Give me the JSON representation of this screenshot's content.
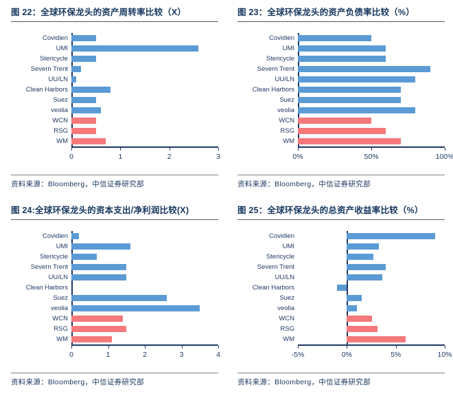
{
  "palette": {
    "bar_blue": "#5B9BD5",
    "bar_red": "#F5787B",
    "axis_navy": "#1F3864",
    "title_navy": "#17375E"
  },
  "source_line": "资料来源：Bloomberg，中信证券研究部",
  "chart_data": [
    {
      "type": "bar",
      "orientation": "horizontal",
      "figure_label": "图 22",
      "title": "图 22：全球环保龙头的资产周转率比较（X）",
      "unit": "X",
      "categories": [
        "Covidien",
        "UMI",
        "Stericycle",
        "Severn Trent",
        "UU/LN",
        "Clean Harbors",
        "Suez",
        "veolia",
        "WCN",
        "RSG",
        "WM"
      ],
      "values": [
        0.5,
        2.6,
        0.5,
        0.2,
        0.1,
        0.8,
        0.5,
        0.6,
        0.5,
        0.5,
        0.7
      ],
      "colors": [
        "blue",
        "blue",
        "blue",
        "blue",
        "blue",
        "blue",
        "blue",
        "blue",
        "red",
        "red",
        "red"
      ],
      "xlim": [
        0,
        3
      ],
      "xticks": [
        0,
        1,
        2,
        3
      ],
      "xtick_labels": [
        "0",
        "1",
        "2",
        "3"
      ],
      "grid": false,
      "legend": false
    },
    {
      "type": "bar",
      "orientation": "horizontal",
      "figure_label": "图 23",
      "title": "图 23：全球环保龙头的资产负债率比较（%）",
      "unit": "%",
      "categories": [
        "Covidien",
        "UMI",
        "Stericycle",
        "Severn Trent",
        "UU/LN",
        "Clean Harbors",
        "Suez",
        "veolia",
        "WCN",
        "RSG",
        "WM"
      ],
      "values": [
        50,
        60,
        60,
        90,
        80,
        70,
        70,
        80,
        50,
        60,
        70
      ],
      "colors": [
        "blue",
        "blue",
        "blue",
        "blue",
        "blue",
        "blue",
        "blue",
        "blue",
        "red",
        "red",
        "red"
      ],
      "xlim": [
        0,
        100
      ],
      "xticks": [
        0,
        50,
        100
      ],
      "xtick_labels": [
        "0%",
        "50%",
        "100%"
      ],
      "grid": false,
      "legend": false
    },
    {
      "type": "bar",
      "orientation": "horizontal",
      "figure_label": "图 24",
      "title": "图 24:全球环保龙头的资本支出/净利润比较(X)",
      "unit": "X",
      "categories": [
        "Covidien",
        "UMI",
        "Stericycle",
        "Severn Trent",
        "UU/LN",
        "Clean Harbors",
        "Suez",
        "veolia",
        "WCN",
        "RSG",
        "WM"
      ],
      "values": [
        0.2,
        1.6,
        0.7,
        1.5,
        1.5,
        0,
        2.6,
        3.5,
        1.4,
        1.5,
        1.1
      ],
      "colors": [
        "blue",
        "blue",
        "blue",
        "blue",
        "blue",
        "blue",
        "blue",
        "blue",
        "red",
        "red",
        "red"
      ],
      "xlim": [
        0,
        4
      ],
      "xticks": [
        0,
        1,
        2,
        3,
        4
      ],
      "xtick_labels": [
        "0",
        "1",
        "2",
        "3",
        "4"
      ],
      "grid": false,
      "legend": false
    },
    {
      "type": "bar",
      "orientation": "horizontal",
      "figure_label": "图 25",
      "title": "图 25：全球环保龙头的总资产收益率比较（%）",
      "unit": "%",
      "categories": [
        "Covidien",
        "UMI",
        "Stericycle",
        "Severn Trent",
        "UU/LN",
        "Clean Harbors",
        "Suez",
        "veolia",
        "WCN",
        "RSG",
        "WM"
      ],
      "values": [
        9,
        3.3,
        2.7,
        4,
        3.6,
        -1,
        1.5,
        1,
        2.6,
        3.1,
        6
      ],
      "colors": [
        "blue",
        "blue",
        "blue",
        "blue",
        "blue",
        "blue",
        "blue",
        "blue",
        "red",
        "red",
        "red"
      ],
      "xlim": [
        -5,
        10
      ],
      "xticks": [
        -5,
        0,
        5,
        10
      ],
      "xtick_labels": [
        "-5%",
        "0%",
        "5%",
        "10%"
      ],
      "grid": false,
      "legend": false
    }
  ]
}
